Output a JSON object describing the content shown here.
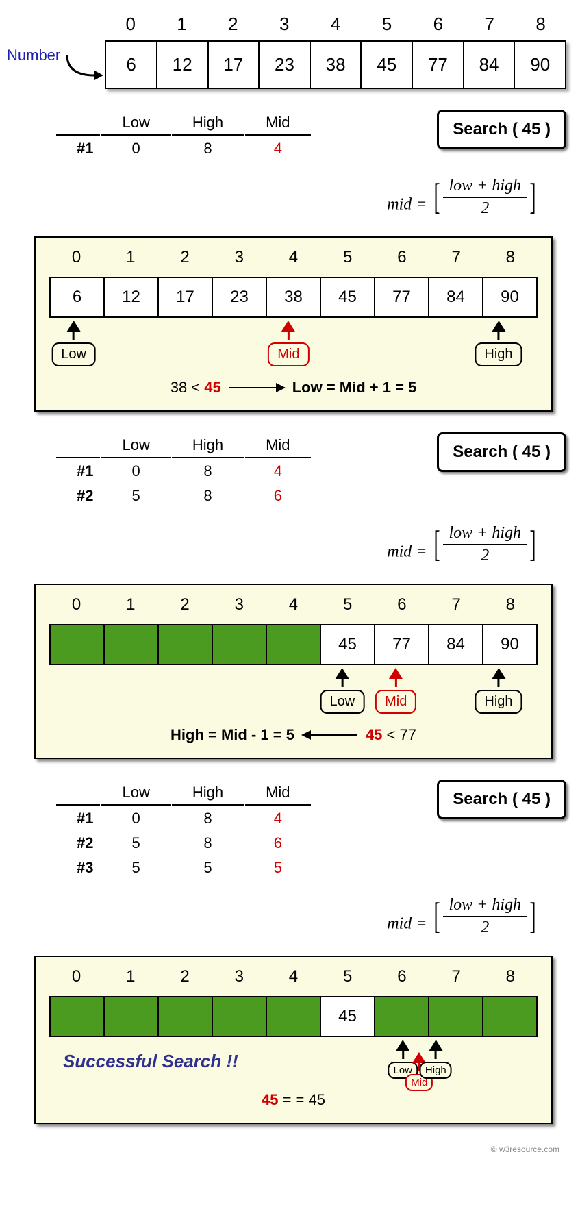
{
  "colors": {
    "number_label": "#2020b0",
    "mid_red": "#d00000",
    "panel_bg": "#fafbe0",
    "filled_green": "#4a9b1f",
    "success_text": "#303090",
    "shadow": "#888888"
  },
  "top": {
    "label": "Number",
    "indices": [
      "0",
      "1",
      "2",
      "3",
      "4",
      "5",
      "6",
      "7",
      "8"
    ],
    "values": [
      "6",
      "12",
      "17",
      "23",
      "38",
      "45",
      "77",
      "84",
      "90"
    ]
  },
  "search_label": "Search ( 45 )",
  "formula": {
    "lhs": "mid =",
    "num": "low + high",
    "den": "2"
  },
  "table_headers": [
    "Low",
    "High",
    "Mid"
  ],
  "step1": {
    "rows": [
      {
        "n": "#1",
        "low": "0",
        "high": "8",
        "mid": "4"
      }
    ],
    "panel": {
      "indices": [
        "0",
        "1",
        "2",
        "3",
        "4",
        "5",
        "6",
        "7",
        "8"
      ],
      "cells": [
        {
          "v": "6"
        },
        {
          "v": "12"
        },
        {
          "v": "17"
        },
        {
          "v": "23"
        },
        {
          "v": "38"
        },
        {
          "v": "45"
        },
        {
          "v": "77"
        },
        {
          "v": "84"
        },
        {
          "v": "90"
        }
      ],
      "pointers": {
        "low_pct": 5,
        "mid_pct": 49,
        "high_pct": 92
      },
      "caption_pre": "38 < ",
      "caption_red": "45",
      "caption_post": "Low = Mid + 1 = 5",
      "arrow_dir": "right"
    }
  },
  "step2": {
    "rows": [
      {
        "n": "#1",
        "low": "0",
        "high": "8",
        "mid": "4"
      },
      {
        "n": "#2",
        "low": "5",
        "high": "8",
        "mid": "6"
      }
    ],
    "panel": {
      "indices": [
        "0",
        "1",
        "2",
        "3",
        "4",
        "5",
        "6",
        "7",
        "8"
      ],
      "cells": [
        {
          "f": true
        },
        {
          "f": true
        },
        {
          "f": true
        },
        {
          "f": true
        },
        {
          "f": true
        },
        {
          "v": "45"
        },
        {
          "v": "77"
        },
        {
          "v": "84"
        },
        {
          "v": "90"
        }
      ],
      "pointers": {
        "low_pct": 60,
        "mid_pct": 71,
        "high_pct": 92
      },
      "caption_pre": "High = Mid - 1 = 5",
      "caption_red": "45",
      "caption_post": " < 77",
      "arrow_dir": "left"
    }
  },
  "step3": {
    "rows": [
      {
        "n": "#1",
        "low": "0",
        "high": "8",
        "mid": "4"
      },
      {
        "n": "#2",
        "low": "5",
        "high": "8",
        "mid": "6"
      },
      {
        "n": "#3",
        "low": "5",
        "high": "5",
        "mid": "5"
      }
    ],
    "panel": {
      "indices": [
        "0",
        "1",
        "2",
        "3",
        "4",
        "5",
        "6",
        "7",
        "8"
      ],
      "cells": [
        {
          "f": true
        },
        {
          "f": true
        },
        {
          "f": true
        },
        {
          "f": true
        },
        {
          "f": true
        },
        {
          "v": "45"
        },
        {
          "f": true
        },
        {
          "f": true
        },
        {
          "f": true
        }
      ],
      "pointers": {
        "low_pct": 55,
        "mid_pct": 60.5,
        "high_pct": 66
      },
      "success": "Successful Search !!",
      "caption_red": "45",
      "caption_post": " = =   45"
    }
  },
  "footer": "© w3resource.com"
}
